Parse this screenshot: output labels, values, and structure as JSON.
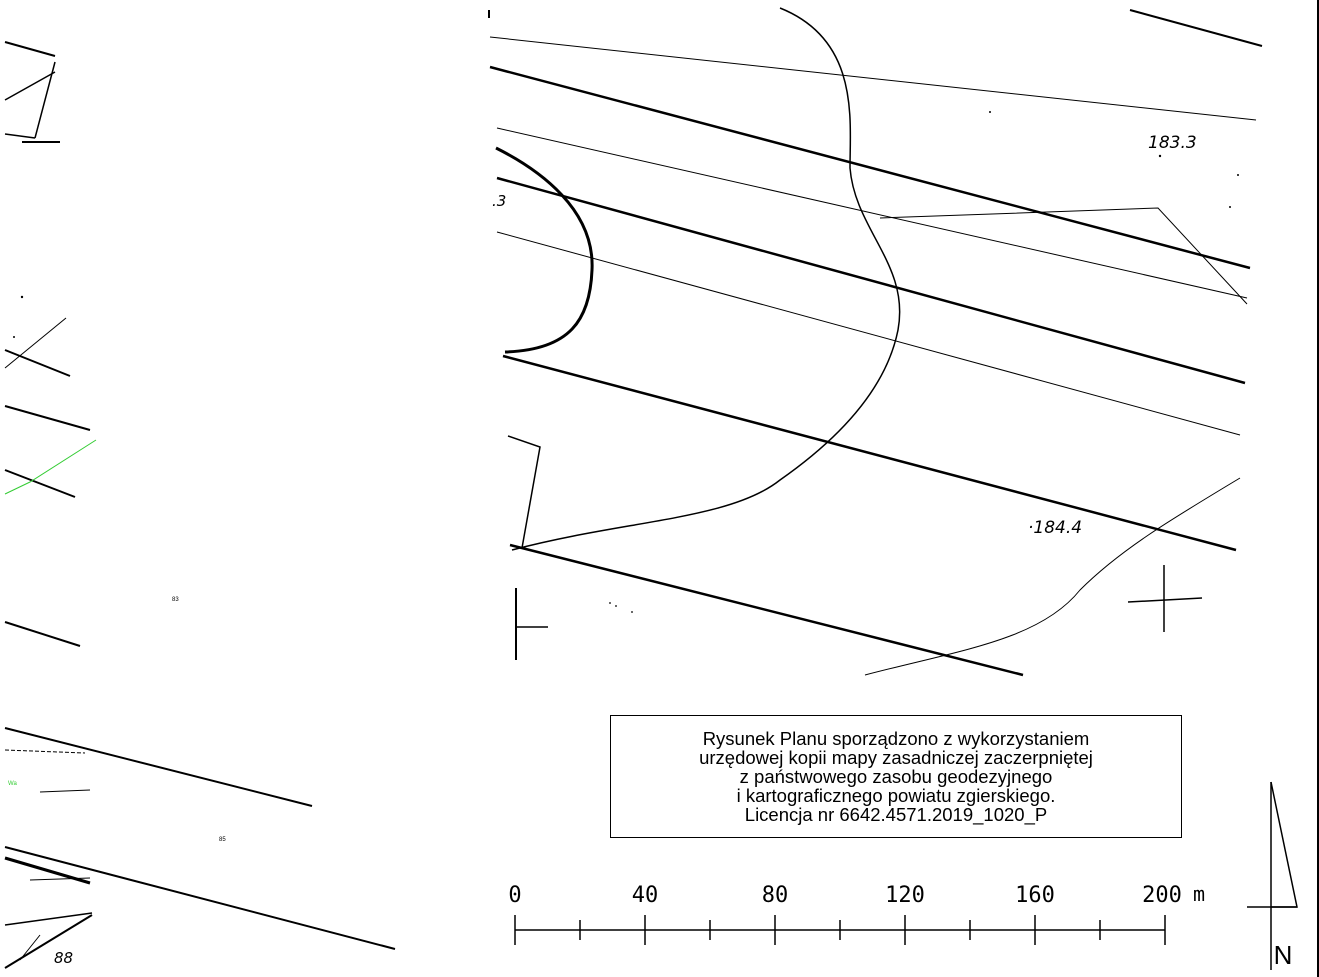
{
  "map": {
    "elevation_labels": [
      "183.3",
      ".3",
      "·184.4"
    ],
    "parcel_label": "88",
    "tiny_labels": [
      "83",
      "85",
      "Wa"
    ],
    "right_border_color": "#000000",
    "green_line_color": "#33cc33"
  },
  "note": {
    "lines": [
      "Rysunek Planu sporządzono z wykorzystaniem",
      "urzędowej kopii mapy zasadniczej zaczerpniętej",
      "z państwowego zasobu geodezyjnego",
      "i kartograficznego powiatu zgierskiego.",
      "Licencja nr 6642.4571.2019_1020_P"
    ]
  },
  "scale_bar": {
    "ticks": [
      "0",
      "40",
      "80",
      "120",
      "160",
      "200"
    ],
    "unit": "m"
  },
  "north_arrow": {
    "label": "N"
  }
}
